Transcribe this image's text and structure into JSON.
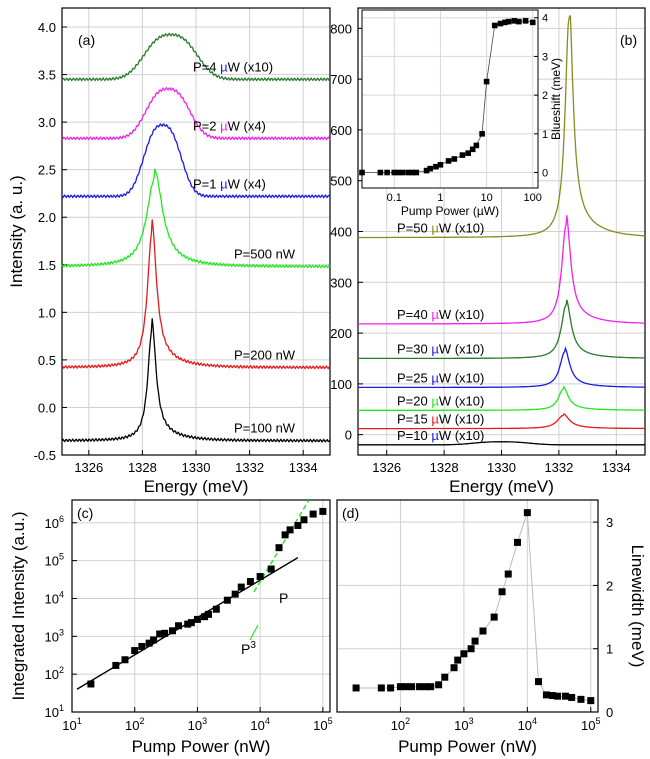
{
  "chart_data": [
    {
      "id": "a",
      "panel_label": "(a)",
      "type": "line",
      "xlabel": "Energy (meV)",
      "ylabel": "Intensity (a. u.)",
      "xlim": [
        1325,
        1335
      ],
      "ylim": [
        -0.5,
        4.2
      ],
      "xticks": [
        "1326",
        "1328",
        "1330",
        "1332",
        "1334"
      ],
      "yticks": [
        "-0.5",
        "0.0",
        "0.5",
        "1.0",
        "1.5",
        "2.0",
        "2.5",
        "3.0",
        "3.5",
        "4.0"
      ],
      "grid": true,
      "series": [
        {
          "label": "P=100 nW",
          "color": "#000000",
          "baseline": -0.35,
          "shape": "lorentz",
          "center": 1328.35,
          "width": 0.18,
          "amp": 1.15
        },
        {
          "label": "P=200 nW",
          "color": "#e41a1c",
          "baseline": 0.42,
          "shape": "lorentz",
          "center": 1328.35,
          "width": 0.2,
          "amp": 1.4
        },
        {
          "label": "P=500 nW",
          "color": "#22e822",
          "baseline": 1.48,
          "shape": "lorentz",
          "center": 1328.45,
          "width": 0.35,
          "amp": 0.92
        },
        {
          "label_parts": [
            "P=1 ",
            "µ",
            "W (x4)"
          ],
          "mu_color": "#1a1ae8",
          "color": "#1a1ae8",
          "baseline": 2.22,
          "shape": "broad",
          "center": 1328.75,
          "width": 0.85,
          "amp": 0.75
        },
        {
          "label_parts": [
            "P=2 ",
            "µ",
            "W (x4)"
          ],
          "mu_color": "#ee22ee",
          "color": "#ee22ee",
          "baseline": 2.83,
          "shape": "broad",
          "center": 1328.95,
          "width": 1.0,
          "amp": 0.52
        },
        {
          "label_parts": [
            "P=4 ",
            "µ",
            "W (x10)"
          ],
          "mu_color": "#1a1ae8",
          "color": "#2a7a2a",
          "baseline": 3.45,
          "shape": "broad",
          "center": 1329.05,
          "width": 1.2,
          "amp": 0.47
        }
      ]
    },
    {
      "id": "b",
      "panel_label": "(b)",
      "type": "line",
      "xlabel": "Energy (meV)",
      "xlim": [
        1325,
        1335
      ],
      "ylim": [
        -40,
        840
      ],
      "xticks": [
        "1326",
        "1328",
        "1330",
        "1332",
        "1334"
      ],
      "yticks": [
        "0",
        "100",
        "200",
        "300",
        "400",
        "500",
        "600",
        "700",
        "800"
      ],
      "grid": true,
      "series": [
        {
          "label_parts": [
            "P=10 ",
            "µ",
            "W (x10)"
          ],
          "mu_color": "#1a1ae8",
          "color": "#000000",
          "baseline": -20,
          "shape": "broad",
          "center": 1330.0,
          "width": 1.2,
          "amp": 6
        },
        {
          "label_parts": [
            "P=15 ",
            "µ",
            "W (x10)"
          ],
          "mu_color": "#e41a1c",
          "color": "#e41a1c",
          "baseline": 12,
          "shape": "lorentz",
          "center": 1332.15,
          "width": 0.25,
          "amp": 26
        },
        {
          "label_parts": [
            "P=20 ",
            "µ",
            "W (x10)"
          ],
          "mu_color": "#22e822",
          "color": "#22e822",
          "baseline": 48,
          "shape": "lorentz",
          "center": 1332.15,
          "width": 0.2,
          "amp": 42
        },
        {
          "label_parts": [
            "P=25 ",
            "µ",
            "W (x10)"
          ],
          "mu_color": "#1a1ae8",
          "color": "#1a1ae8",
          "baseline": 93,
          "shape": "lorentz",
          "center": 1332.2,
          "width": 0.2,
          "amp": 70
        },
        {
          "label_parts": [
            "P=30 ",
            "µ",
            "W (x10)"
          ],
          "mu_color": "#1a1ae8",
          "color": "#2a7a2a",
          "baseline": 150,
          "shape": "lorentz",
          "center": 1332.25,
          "width": 0.2,
          "amp": 105
        },
        {
          "label_parts": [
            "P=40 ",
            "µ",
            "W (x10)"
          ],
          "mu_color": "#ee22ee",
          "color": "#ee22ee",
          "baseline": 218,
          "shape": "lorentz",
          "center": 1332.25,
          "width": 0.18,
          "amp": 195
        },
        {
          "label_parts": [
            "P=50 ",
            "µ",
            "W (x10)"
          ],
          "mu_color": "#8a8a22",
          "color": "#8a8a22",
          "baseline": 388,
          "shape": "lorentz",
          "center": 1332.35,
          "width": 0.16,
          "amp": 430
        }
      ],
      "inset": {
        "type": "scatter",
        "xlabel": "Pump Power (µW)",
        "ylabel": "Blueshift (meV)",
        "x_scale": "log",
        "xlim": [
          0.02,
          130
        ],
        "ylim": [
          -0.4,
          4.2
        ],
        "xticks": [
          "0.1",
          "1",
          "10",
          "100"
        ],
        "yticks": [
          "0",
          "1",
          "2",
          "3",
          "4"
        ],
        "x": [
          0.02,
          0.05,
          0.07,
          0.1,
          0.12,
          0.15,
          0.2,
          0.25,
          0.3,
          0.5,
          0.6,
          0.8,
          1.0,
          1.5,
          2.0,
          3.0,
          4.0,
          5.0,
          6.0,
          8.0,
          10,
          15,
          20,
          25,
          30,
          40,
          50,
          70,
          100
        ],
        "y": [
          0.0,
          0.0,
          0.0,
          0.0,
          0.0,
          0.0,
          0.0,
          0.0,
          0.0,
          0.05,
          0.1,
          0.15,
          0.2,
          0.3,
          0.35,
          0.45,
          0.5,
          0.6,
          0.7,
          1.0,
          2.35,
          3.8,
          3.85,
          3.88,
          3.9,
          3.92,
          3.9,
          3.92,
          3.88
        ]
      }
    },
    {
      "id": "c",
      "panel_label": "(c)",
      "type": "scatter",
      "xlabel": "Pump Power (nW)",
      "ylabel": "Integrated Intensity (a.u.)",
      "x_scale": "log",
      "y_scale": "log",
      "xlim": [
        10,
        130000
      ],
      "ylim": [
        10,
        4000000
      ],
      "xticks": [
        "10^1",
        "10^2",
        "10^3",
        "10^4",
        "10^5"
      ],
      "yticks": [
        "10^1",
        "10^2",
        "10^3",
        "10^4",
        "10^5",
        "10^6"
      ],
      "grid": true,
      "x": [
        20,
        50,
        70,
        100,
        130,
        170,
        200,
        250,
        300,
        400,
        500,
        700,
        800,
        1000,
        1300,
        1500,
        2000,
        3000,
        4000,
        5000,
        7000,
        10000,
        15000,
        20000,
        25000,
        30000,
        40000,
        50000,
        70000,
        100000
      ],
      "y": [
        55,
        170,
        240,
        420,
        540,
        660,
        800,
        1150,
        1200,
        1400,
        1900,
        2100,
        2300,
        2800,
        3300,
        3800,
        5200,
        9000,
        13000,
        20000,
        28000,
        38000,
        60000,
        220000,
        480000,
        650000,
        850000,
        1200000,
        1700000,
        2000000
      ],
      "fits": [
        {
          "label": "P",
          "color": "#000000",
          "dash": false,
          "x": [
            12,
            40000
          ],
          "y": [
            40,
            120000
          ]
        },
        {
          "label_parts": [
            "P",
            "3"
          ],
          "color": "#22e822",
          "dash": true,
          "x": [
            8000,
            60000
          ],
          "y": [
            15000,
            6300000
          ]
        }
      ]
    },
    {
      "id": "d",
      "panel_label": "(d)",
      "type": "line",
      "xlabel": "Pump Power (nW)",
      "ylabel": "Linewidth (meV)",
      "x_scale": "log",
      "xlim": [
        10,
        130000
      ],
      "ylim": [
        0,
        3.35
      ],
      "xticks": [
        "10^1",
        "10^2",
        "10^3",
        "10^4",
        "10^5"
      ],
      "yticks": [
        "0",
        "1",
        "2",
        "3"
      ],
      "grid": true,
      "x": [
        20,
        50,
        70,
        100,
        120,
        150,
        200,
        250,
        300,
        400,
        500,
        700,
        800,
        1000,
        1300,
        1500,
        2000,
        3000,
        4000,
        5000,
        7000,
        10000,
        15000,
        20000,
        25000,
        30000,
        40000,
        50000,
        70000,
        100000
      ],
      "y": [
        0.38,
        0.38,
        0.38,
        0.4,
        0.4,
        0.4,
        0.4,
        0.4,
        0.4,
        0.43,
        0.55,
        0.7,
        0.82,
        0.92,
        1.0,
        1.12,
        1.28,
        1.5,
        1.9,
        2.18,
        2.68,
        3.15,
        0.48,
        0.27,
        0.26,
        0.25,
        0.25,
        0.23,
        0.2,
        0.18
      ]
    }
  ]
}
